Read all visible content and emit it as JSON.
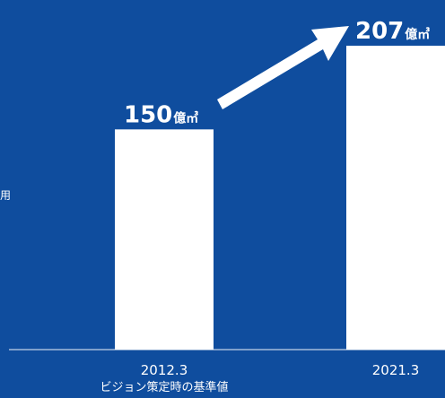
{
  "side_label": "用",
  "chart_data": {
    "type": "bar",
    "categories": [
      "2012.3",
      "2021.3"
    ],
    "category_sublabels": [
      "ビジョン策定時の基準値",
      ""
    ],
    "values": [
      150,
      207
    ],
    "value_labels": [
      {
        "number": "150",
        "unit": "億㎥"
      },
      {
        "number": "207",
        "unit": "億㎥"
      }
    ],
    "ylim": [
      0,
      207
    ],
    "grid": false,
    "legend": "none",
    "colors": {
      "background": "#0f4d9e",
      "bar": "#ffffff",
      "arrow": "#ffffff",
      "text": "#ffffff"
    }
  }
}
